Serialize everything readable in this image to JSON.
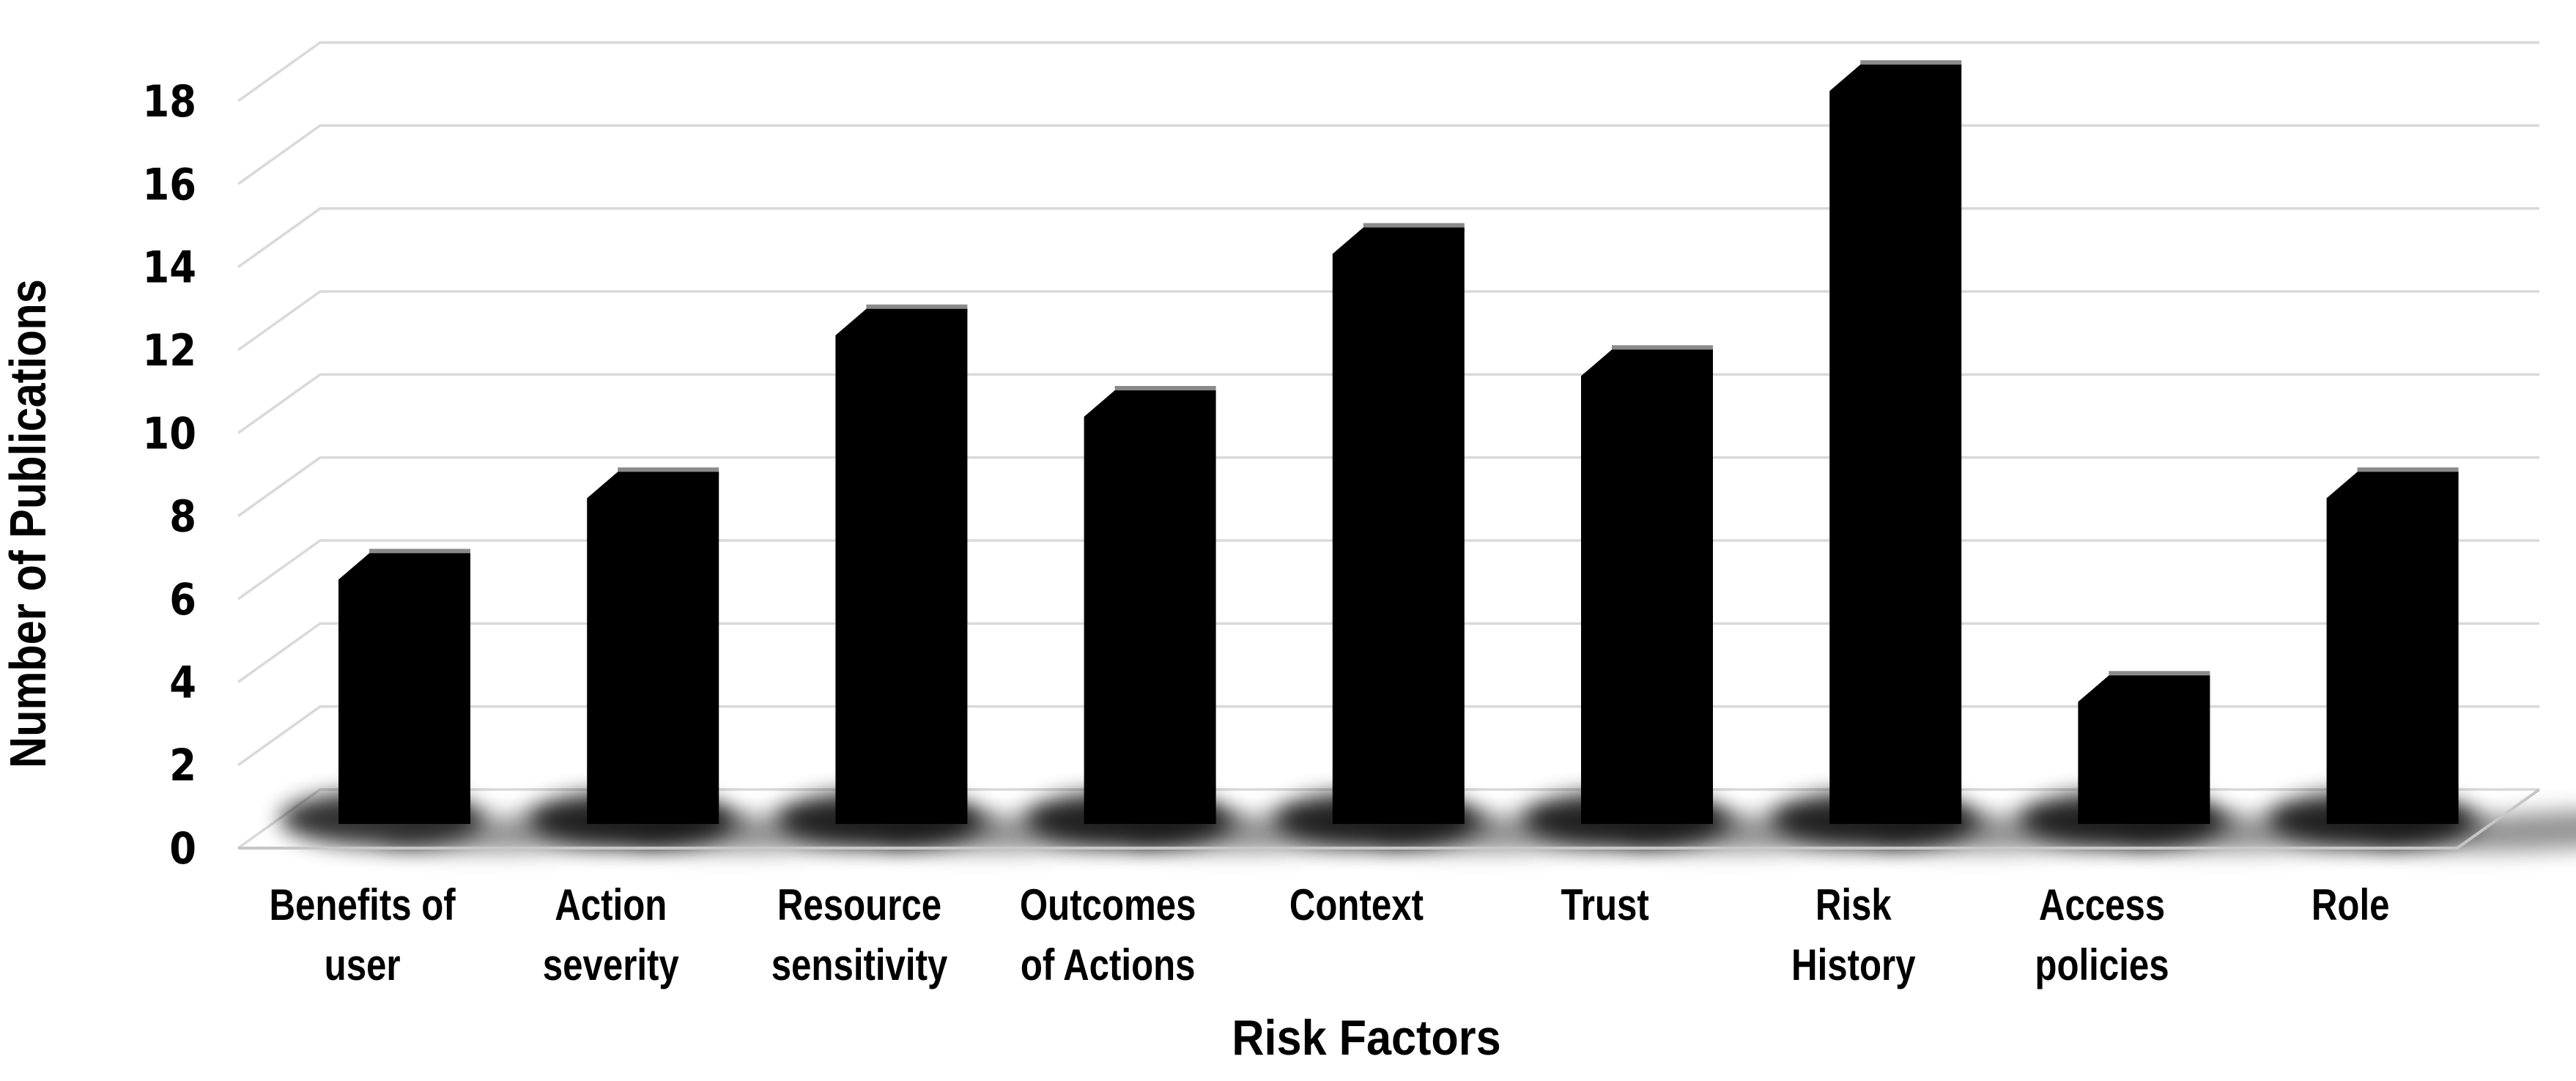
{
  "chart_data": {
    "type": "bar",
    "style": "3d-oblique-black-columns",
    "title": "",
    "xlabel": "Risk Factors",
    "ylabel": "Number of Publications",
    "categories": [
      "Benefits of user",
      "Action severity",
      "Resource sensitivity",
      "Outcomes of Actions",
      "Context",
      "Trust",
      "Risk History",
      "Access policies",
      "Role"
    ],
    "category_lines": [
      [
        "Benefits of",
        "user"
      ],
      [
        "Action",
        "severity"
      ],
      [
        "Resource",
        "sensitivity"
      ],
      [
        "Outcomes",
        "of Actions"
      ],
      [
        "Context"
      ],
      [
        "Trust"
      ],
      [
        "Risk",
        "History"
      ],
      [
        "Access",
        "policies"
      ],
      [
        "Role"
      ]
    ],
    "values": [
      6,
      8,
      12,
      10,
      14,
      11,
      18,
      3,
      8
    ],
    "ylim": [
      0,
      18
    ],
    "yticks": [
      0,
      2,
      4,
      6,
      8,
      10,
      12,
      14,
      16,
      18
    ],
    "grid": true,
    "legend": false,
    "colors": {
      "bar": "#000000",
      "bar_top_edge": "#8a8a8a",
      "gridline": "#d9d9d9",
      "floor_edge": "#c6c6c6",
      "text": "#000000",
      "background": "#ffffff",
      "shadow": "#000000"
    }
  }
}
